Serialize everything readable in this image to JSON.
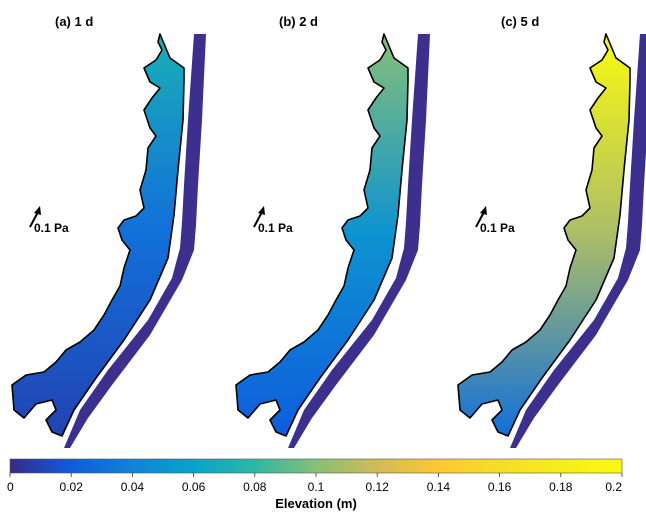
{
  "chart_data": {
    "type": "heatmap",
    "panels": [
      {
        "title": "(a)  1 d",
        "time_days": 1,
        "north_elevation": 0.07,
        "mid_elevation": 0.03,
        "south_elevation": 0.01
      },
      {
        "title": "(b)  2 d",
        "time_days": 2,
        "north_elevation": 0.1,
        "mid_elevation": 0.05,
        "south_elevation": 0.02
      },
      {
        "title": "(c)  5 d",
        "time_days": 5,
        "north_elevation": 0.2,
        "mid_elevation": 0.11,
        "south_elevation": 0.03
      }
    ],
    "stress_scale_label": "0.1 Pa",
    "colorbar": {
      "label": "Elevation (m)",
      "range": [
        0,
        0.2
      ],
      "ticks": [
        0,
        0.02,
        0.04,
        0.06,
        0.08,
        0.1,
        0.12,
        0.14,
        0.16,
        0.18,
        0.2
      ],
      "tick_labels": [
        "0",
        "0.02",
        "0.04",
        "0.06",
        "0.08",
        "0.1",
        "0.12",
        "0.14",
        "0.16",
        "0.18",
        "0.2"
      ],
      "colormap": "parula"
    },
    "ocean_color": "#3c2f8e",
    "coastline_color": "#000000"
  }
}
